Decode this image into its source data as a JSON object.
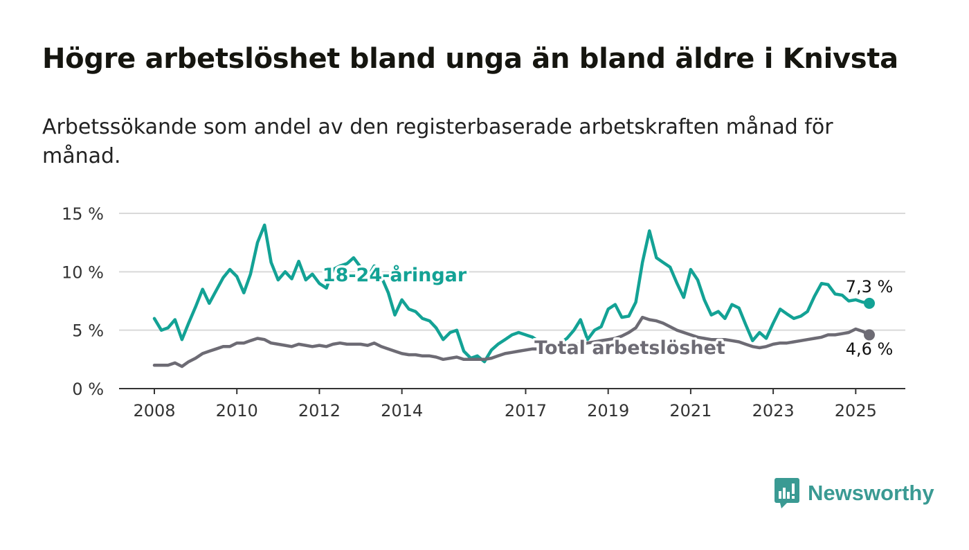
{
  "title": "Högre arbetslöshet bland unga än bland äldre i Knivsta",
  "subtitle": "Arbetssökande som andel av den registerbaserade arbetskraften månad för månad.",
  "brand": {
    "name": "Newsworthy",
    "color": "#3a9a93"
  },
  "chart_data": {
    "type": "line",
    "title": "Högre arbetslöshet bland unga än bland äldre i Knivsta",
    "subtitle": "Arbetssökande som andel av den registerbaserade arbetskraften månad för månad.",
    "ylim": [
      0,
      15
    ],
    "xlim": [
      2008,
      2025.6
    ],
    "y_ticks": [
      0,
      5,
      10,
      15
    ],
    "y_tick_labels": [
      "0 %",
      "5 %",
      "10 %",
      "15 %"
    ],
    "x_ticks": [
      2008,
      2010,
      2012,
      2014,
      2017,
      2019,
      2021,
      2023,
      2025
    ],
    "x_tick_labels": [
      "2008",
      "2010",
      "2012",
      "2014",
      "2017",
      "2019",
      "2021",
      "2023",
      "2025"
    ],
    "grid": true,
    "series": [
      {
        "name": "18-24-åringar",
        "color": "#13a295",
        "end_label": "7,3 %",
        "x": [
          2008.0,
          2008.17,
          2008.33,
          2008.5,
          2008.67,
          2008.83,
          2009.0,
          2009.17,
          2009.33,
          2009.5,
          2009.67,
          2009.83,
          2010.0,
          2010.17,
          2010.33,
          2010.5,
          2010.67,
          2010.83,
          2011.0,
          2011.17,
          2011.33,
          2011.5,
          2011.67,
          2011.83,
          2012.0,
          2012.17,
          2012.33,
          2012.5,
          2012.67,
          2012.83,
          2013.0,
          2013.17,
          2013.33,
          2013.5,
          2013.67,
          2013.83,
          2014.0,
          2014.17,
          2014.33,
          2014.5,
          2014.67,
          2014.83,
          2015.0,
          2015.17,
          2015.33,
          2015.5,
          2015.67,
          2015.83,
          2016.0,
          2016.17,
          2016.33,
          2016.5,
          2016.67,
          2016.83,
          2017.0,
          2017.17,
          2017.33,
          2017.5,
          2017.67,
          2017.83,
          2018.0,
          2018.17,
          2018.33,
          2018.5,
          2018.67,
          2018.83,
          2019.0,
          2019.17,
          2019.33,
          2019.5,
          2019.67,
          2019.83,
          2020.0,
          2020.17,
          2020.33,
          2020.5,
          2020.67,
          2020.83,
          2021.0,
          2021.17,
          2021.33,
          2021.5,
          2021.67,
          2021.83,
          2022.0,
          2022.17,
          2022.33,
          2022.5,
          2022.67,
          2022.83,
          2023.0,
          2023.17,
          2023.33,
          2023.5,
          2023.67,
          2023.83,
          2024.0,
          2024.17,
          2024.33,
          2024.5,
          2024.67,
          2024.83,
          2025.0,
          2025.17,
          2025.33
        ],
        "values": [
          6.0,
          5.0,
          5.2,
          5.9,
          4.2,
          5.6,
          7.0,
          8.5,
          7.3,
          8.4,
          9.5,
          10.2,
          9.6,
          8.2,
          9.8,
          12.5,
          14.0,
          10.8,
          9.3,
          10.0,
          9.4,
          10.9,
          9.3,
          9.8,
          9.0,
          8.6,
          10.2,
          10.5,
          10.7,
          11.2,
          10.4,
          9.5,
          10.5,
          9.6,
          8.2,
          6.3,
          7.6,
          6.8,
          6.6,
          6.0,
          5.8,
          5.2,
          4.2,
          4.8,
          5.0,
          3.2,
          2.6,
          2.8,
          2.3,
          3.3,
          3.8,
          4.2,
          4.6,
          4.8,
          4.6,
          4.4,
          4.0,
          3.8,
          3.6,
          3.9,
          4.3,
          5.0,
          5.9,
          4.2,
          5.0,
          5.3,
          6.8,
          7.2,
          6.1,
          6.2,
          7.4,
          10.8,
          13.5,
          11.2,
          10.8,
          10.4,
          9.0,
          7.8,
          10.2,
          9.3,
          7.6,
          6.3,
          6.6,
          6.0,
          7.2,
          6.9,
          5.5,
          4.1,
          4.8,
          4.3,
          5.6,
          6.8,
          6.4,
          6.0,
          6.2,
          6.6,
          7.9,
          9.0,
          8.9,
          8.1,
          8.0,
          7.5,
          7.6,
          7.4,
          7.3
        ]
      },
      {
        "name": "Total arbetslöshet",
        "color": "#6d6b74",
        "end_label": "4,6 %",
        "x": [
          2008.0,
          2008.17,
          2008.33,
          2008.5,
          2008.67,
          2008.83,
          2009.0,
          2009.17,
          2009.33,
          2009.5,
          2009.67,
          2009.83,
          2010.0,
          2010.17,
          2010.33,
          2010.5,
          2010.67,
          2010.83,
          2011.0,
          2011.17,
          2011.33,
          2011.5,
          2011.67,
          2011.83,
          2012.0,
          2012.17,
          2012.33,
          2012.5,
          2012.67,
          2012.83,
          2013.0,
          2013.17,
          2013.33,
          2013.5,
          2013.67,
          2013.83,
          2014.0,
          2014.17,
          2014.33,
          2014.5,
          2014.67,
          2014.83,
          2015.0,
          2015.17,
          2015.33,
          2015.5,
          2015.67,
          2015.83,
          2016.0,
          2016.17,
          2016.33,
          2016.5,
          2016.67,
          2016.83,
          2017.0,
          2017.17,
          2017.33,
          2017.5,
          2017.67,
          2017.83,
          2018.0,
          2018.17,
          2018.33,
          2018.5,
          2018.67,
          2018.83,
          2019.0,
          2019.17,
          2019.33,
          2019.5,
          2019.67,
          2019.83,
          2020.0,
          2020.17,
          2020.33,
          2020.5,
          2020.67,
          2020.83,
          2021.0,
          2021.17,
          2021.33,
          2021.5,
          2021.67,
          2021.83,
          2022.0,
          2022.17,
          2022.33,
          2022.5,
          2022.67,
          2022.83,
          2023.0,
          2023.17,
          2023.33,
          2023.5,
          2023.67,
          2023.83,
          2024.0,
          2024.17,
          2024.33,
          2024.5,
          2024.67,
          2024.83,
          2025.0,
          2025.17,
          2025.33
        ],
        "values": [
          2.0,
          2.0,
          2.0,
          2.2,
          1.9,
          2.3,
          2.6,
          3.0,
          3.2,
          3.4,
          3.6,
          3.6,
          3.9,
          3.9,
          4.1,
          4.3,
          4.2,
          3.9,
          3.8,
          3.7,
          3.6,
          3.8,
          3.7,
          3.6,
          3.7,
          3.6,
          3.8,
          3.9,
          3.8,
          3.8,
          3.8,
          3.7,
          3.9,
          3.6,
          3.4,
          3.2,
          3.0,
          2.9,
          2.9,
          2.8,
          2.8,
          2.7,
          2.5,
          2.6,
          2.7,
          2.5,
          2.5,
          2.5,
          2.5,
          2.6,
          2.8,
          3.0,
          3.1,
          3.2,
          3.3,
          3.4,
          3.4,
          3.5,
          3.6,
          3.6,
          3.7,
          3.8,
          3.8,
          3.9,
          4.0,
          4.1,
          4.2,
          4.3,
          4.5,
          4.8,
          5.2,
          6.1,
          5.9,
          5.8,
          5.6,
          5.3,
          5.0,
          4.8,
          4.6,
          4.4,
          4.3,
          4.2,
          4.2,
          4.2,
          4.1,
          4.0,
          3.8,
          3.6,
          3.5,
          3.6,
          3.8,
          3.9,
          3.9,
          4.0,
          4.1,
          4.2,
          4.3,
          4.4,
          4.6,
          4.6,
          4.7,
          4.8,
          5.1,
          4.9,
          4.6
        ]
      }
    ],
    "annotations": [
      {
        "text": "18-24-åringar",
        "series": 0,
        "x": 2013.5,
        "y": 9.8
      },
      {
        "text": "Total arbetslöshet",
        "series": 1,
        "x": 2019.0,
        "y": 3.5
      }
    ]
  }
}
